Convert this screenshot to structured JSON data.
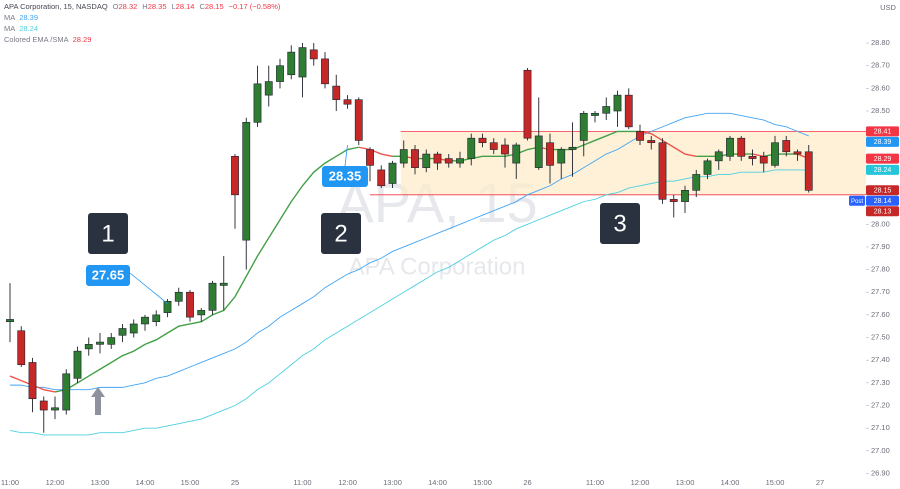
{
  "chart_data": {
    "type": "candlestick",
    "header": {
      "symbol": "APA Corporation, 15, NASDAQ",
      "quote": [
        {
          "key": "O",
          "value": "28.32"
        },
        {
          "key": "H",
          "value": "28.35"
        },
        {
          "key": "L",
          "value": "28.14"
        },
        {
          "key": "C",
          "value": "28.15"
        }
      ],
      "change": "−0.17 (−0.58%)",
      "color": "#f23645"
    },
    "currency": "USD",
    "watermark": {
      "title": "APA, 15",
      "subtitle": "APA Corporation"
    },
    "categories": [
      "11:00",
      null,
      null,
      null,
      "12:00",
      null,
      null,
      null,
      "13:00",
      null,
      null,
      null,
      "14:00",
      null,
      null,
      null,
      "15:00",
      null,
      null,
      null,
      "25",
      null,
      null,
      null,
      null,
      null,
      "11:00",
      null,
      null,
      null,
      "12:00",
      null,
      null,
      null,
      "13:00",
      null,
      null,
      null,
      "14:00",
      null,
      null,
      null,
      "15:00",
      null,
      null,
      null,
      "26",
      null,
      null,
      null,
      null,
      null,
      "11:00",
      null,
      null,
      null,
      "12:00",
      null,
      null,
      null,
      "13:00",
      null,
      null,
      null,
      "14:00",
      null,
      null,
      null,
      "15:00",
      null,
      null,
      null,
      "27"
    ],
    "open": [
      27.57,
      27.53,
      27.39,
      27.22,
      27.18,
      27.18,
      27.32,
      27.45,
      27.47,
      27.47,
      27.51,
      27.52,
      27.56,
      27.57,
      27.61,
      27.66,
      27.7,
      27.6,
      27.62,
      27.73,
      28.3,
      27.93,
      28.45,
      28.57,
      28.63,
      28.66,
      28.65,
      28.77,
      28.73,
      28.61,
      28.55,
      28.55,
      28.33,
      28.24,
      28.18,
      28.27,
      28.33,
      28.25,
      28.31,
      28.29,
      28.27,
      28.29,
      28.38,
      28.36,
      28.35,
      28.27,
      28.68,
      28.25,
      28.36,
      28.27,
      28.33,
      28.37,
      28.48,
      28.49,
      28.5,
      28.57,
      28.41,
      28.37,
      28.36,
      28.11,
      28.1,
      28.15,
      28.22,
      28.28,
      28.3,
      28.38,
      28.3,
      28.3,
      28.26,
      28.37,
      28.32,
      28.32,
      null
    ],
    "high": [
      27.74,
      27.55,
      27.41,
      27.24,
      27.24,
      27.36,
      27.46,
      27.5,
      27.52,
      27.52,
      27.56,
      27.58,
      27.6,
      27.62,
      27.67,
      27.72,
      27.71,
      27.63,
      27.75,
      27.86,
      28.31,
      28.47,
      28.7,
      28.7,
      28.73,
      28.79,
      28.8,
      28.8,
      28.76,
      28.66,
      28.57,
      28.56,
      28.34,
      28.26,
      28.28,
      28.37,
      28.35,
      28.33,
      28.32,
      28.31,
      28.32,
      28.4,
      28.4,
      28.38,
      28.38,
      28.36,
      28.69,
      28.56,
      28.4,
      28.34,
      28.45,
      28.5,
      28.5,
      28.56,
      28.59,
      28.6,
      28.44,
      28.39,
      28.38,
      28.13,
      28.17,
      28.24,
      28.29,
      28.33,
      28.39,
      28.39,
      28.33,
      28.32,
      28.39,
      28.39,
      28.33,
      28.35,
      null
    ],
    "low": [
      27.48,
      27.37,
      27.17,
      27.08,
      27.14,
      27.16,
      27.3,
      27.42,
      27.43,
      27.45,
      27.48,
      27.5,
      27.53,
      27.55,
      27.59,
      27.64,
      27.57,
      27.57,
      27.6,
      27.62,
      27.98,
      27.8,
      28.43,
      28.52,
      28.6,
      28.64,
      28.56,
      28.7,
      28.6,
      28.5,
      28.51,
      28.35,
      28.19,
      28.16,
      28.16,
      28.25,
      28.22,
      28.23,
      28.24,
      28.25,
      28.25,
      28.26,
      28.34,
      28.31,
      28.25,
      28.2,
      28.37,
      28.24,
      28.18,
      28.2,
      28.21,
      28.3,
      28.45,
      28.46,
      28.43,
      28.42,
      28.35,
      28.33,
      28.09,
      28.03,
      28.05,
      28.12,
      28.2,
      28.24,
      28.28,
      28.28,
      28.26,
      28.23,
      28.25,
      28.3,
      28.28,
      28.14,
      null
    ],
    "close": [
      27.58,
      27.38,
      27.23,
      27.18,
      27.19,
      27.34,
      27.44,
      27.47,
      27.48,
      27.5,
      27.54,
      27.56,
      27.59,
      27.6,
      27.66,
      27.7,
      27.59,
      27.62,
      27.74,
      27.74,
      28.13,
      28.45,
      28.62,
      28.63,
      28.7,
      28.76,
      28.78,
      28.73,
      28.62,
      28.55,
      28.53,
      28.37,
      28.26,
      28.17,
      28.27,
      28.33,
      28.25,
      28.31,
      28.27,
      28.27,
      28.29,
      28.38,
      28.36,
      28.33,
      28.31,
      28.35,
      28.38,
      28.39,
      28.26,
      28.33,
      28.34,
      28.49,
      28.49,
      28.52,
      28.57,
      28.43,
      28.37,
      28.36,
      28.11,
      28.1,
      28.15,
      28.22,
      28.28,
      28.32,
      28.38,
      28.3,
      28.29,
      28.27,
      28.36,
      28.32,
      28.31,
      28.15,
      null
    ],
    "up_color": "#2e7d32",
    "down_color": "#c62828",
    "indicators": [
      {
        "name": "MA",
        "value_label": "28.39",
        "color": "#42a5f5",
        "values": [
          27.29,
          27.29,
          27.28,
          27.28,
          27.27,
          27.27,
          27.27,
          27.27,
          27.28,
          27.28,
          27.28,
          27.29,
          27.3,
          27.32,
          27.33,
          27.35,
          27.37,
          27.39,
          27.41,
          27.43,
          27.45,
          27.48,
          27.52,
          27.55,
          27.59,
          27.62,
          27.65,
          27.68,
          27.72,
          27.75,
          27.78,
          27.8,
          27.83,
          27.85,
          27.88,
          27.9,
          27.92,
          27.94,
          27.96,
          27.98,
          28.0,
          28.02,
          28.04,
          28.06,
          28.08,
          28.1,
          28.13,
          28.15,
          28.17,
          28.2,
          28.22,
          28.25,
          28.28,
          28.31,
          28.33,
          28.36,
          28.39,
          28.41,
          28.43,
          28.45,
          28.47,
          28.48,
          28.49,
          28.49,
          28.49,
          28.48,
          28.47,
          28.46,
          28.44,
          28.43,
          28.41,
          28.39,
          null
        ]
      },
      {
        "name": "MA",
        "value_label": "28.24",
        "color": "#4dd0e1",
        "values": [
          27.09,
          27.08,
          27.08,
          27.07,
          27.07,
          27.07,
          27.07,
          27.07,
          27.08,
          27.08,
          27.08,
          27.09,
          27.1,
          27.1,
          27.11,
          27.12,
          27.13,
          27.14,
          27.16,
          27.18,
          27.2,
          27.23,
          27.27,
          27.3,
          27.34,
          27.38,
          27.42,
          27.45,
          27.49,
          27.52,
          27.55,
          27.58,
          27.61,
          27.64,
          27.67,
          27.7,
          27.73,
          27.76,
          27.79,
          27.81,
          27.84,
          27.87,
          27.9,
          27.93,
          27.95,
          27.98,
          28.0,
          28.02,
          28.04,
          28.06,
          28.08,
          28.1,
          28.11,
          28.13,
          28.14,
          28.16,
          28.17,
          28.18,
          28.19,
          28.19,
          28.2,
          28.21,
          28.21,
          28.22,
          28.22,
          28.23,
          28.23,
          28.23,
          28.24,
          28.24,
          28.24,
          28.24,
          null
        ]
      },
      {
        "name": "Colored EMA /SMA",
        "value_label": "28.29",
        "color": "#f23645",
        "up_color": "#43a047",
        "down_color": "#f0554a",
        "values": [
          27.33,
          27.31,
          27.29,
          27.27,
          27.26,
          27.27,
          27.3,
          27.33,
          27.36,
          27.39,
          27.42,
          27.44,
          27.47,
          27.49,
          27.52,
          27.55,
          27.56,
          27.57,
          27.6,
          27.62,
          27.68,
          27.77,
          27.86,
          27.94,
          28.02,
          28.1,
          28.17,
          28.23,
          28.27,
          28.3,
          28.33,
          28.34,
          28.33,
          28.31,
          28.3,
          28.3,
          28.29,
          28.29,
          28.29,
          28.28,
          28.28,
          28.29,
          28.3,
          28.3,
          28.3,
          28.31,
          28.33,
          28.34,
          28.33,
          28.33,
          28.33,
          28.35,
          28.37,
          28.39,
          28.41,
          28.41,
          28.41,
          28.4,
          28.37,
          28.34,
          28.31,
          28.3,
          28.3,
          28.3,
          28.31,
          28.31,
          28.31,
          28.3,
          28.31,
          28.31,
          28.31,
          28.29,
          null
        ]
      }
    ],
    "price_tags": [
      {
        "value": 28.41,
        "label": "28.41",
        "color": "#f23645"
      },
      {
        "value": 28.39,
        "label": "28.39",
        "color": "#2196f3"
      },
      {
        "value": 28.29,
        "label": "28.29",
        "color": "#f23645"
      },
      {
        "value": 28.24,
        "label": "28.24",
        "color": "#26c6da"
      },
      {
        "value": 28.15,
        "label": "28.15",
        "color": "#c62828"
      },
      {
        "value": 28.14,
        "label": "28.14",
        "color": "#2962ff",
        "prefix": "Post"
      },
      {
        "value": 28.13,
        "label": "28.13",
        "color": "#c62828"
      }
    ],
    "callouts": [
      {
        "value": 27.65,
        "label": "27.65",
        "color": "#2196f3"
      },
      {
        "value": 28.35,
        "label": "28.35",
        "color": "#2196f3"
      }
    ],
    "markers": [
      "1",
      "2",
      "3"
    ],
    "ylim": [
      26.88,
      28.99
    ],
    "yticks": [
      {
        "value": 26.9,
        "label": "26.90"
      },
      {
        "value": 27.0,
        "label": "27.00"
      },
      {
        "value": 27.1,
        "label": "27.10"
      },
      {
        "value": 27.2,
        "label": "27.20"
      },
      {
        "value": 27.3,
        "label": "27.30"
      },
      {
        "value": 27.4,
        "label": "27.40"
      },
      {
        "value": 27.5,
        "label": "27.50"
      },
      {
        "value": 27.6,
        "label": "27.60"
      },
      {
        "value": 27.7,
        "label": "27.70"
      },
      {
        "value": 27.8,
        "label": "27.80"
      },
      {
        "value": 27.9,
        "label": "27.90"
      },
      {
        "value": 28.0,
        "label": "28.00"
      },
      {
        "value": 28.5,
        "label": "28.50"
      },
      {
        "value": 28.6,
        "label": "28.60"
      },
      {
        "value": 28.7,
        "label": "28.70"
      },
      {
        "value": 28.8,
        "label": "28.80"
      }
    ]
  }
}
